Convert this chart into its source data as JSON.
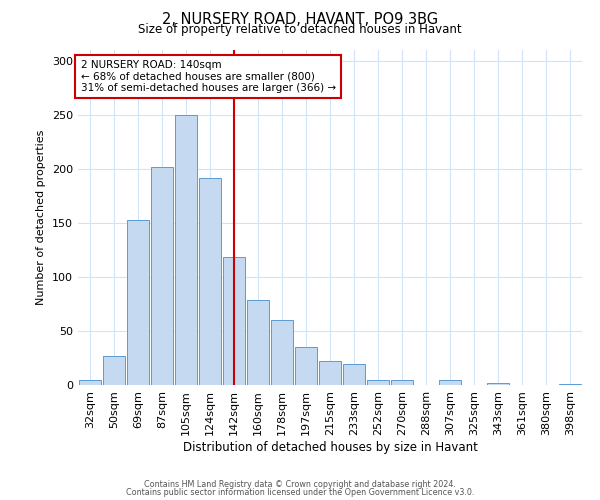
{
  "title": "2, NURSERY ROAD, HAVANT, PO9 3BG",
  "subtitle": "Size of property relative to detached houses in Havant",
  "xlabel": "Distribution of detached houses by size in Havant",
  "ylabel": "Number of detached properties",
  "bin_labels": [
    "32sqm",
    "50sqm",
    "69sqm",
    "87sqm",
    "105sqm",
    "124sqm",
    "142sqm",
    "160sqm",
    "178sqm",
    "197sqm",
    "215sqm",
    "233sqm",
    "252sqm",
    "270sqm",
    "288sqm",
    "307sqm",
    "325sqm",
    "343sqm",
    "361sqm",
    "380sqm",
    "398sqm"
  ],
  "bar_values": [
    5,
    27,
    153,
    202,
    250,
    192,
    118,
    79,
    60,
    35,
    22,
    19,
    5,
    5,
    0,
    5,
    0,
    2,
    0,
    0,
    1
  ],
  "bar_color": "#c5d9f0",
  "bar_edge_color": "#5b9bd5",
  "property_line_index": 6,
  "property_line_color": "#cc0000",
  "annotation_title": "2 NURSERY ROAD: 140sqm",
  "annotation_line1": "← 68% of detached houses are smaller (800)",
  "annotation_line2": "31% of semi-detached houses are larger (366) →",
  "annotation_box_color": "#cc0000",
  "footer_line1": "Contains HM Land Registry data © Crown copyright and database right 2024.",
  "footer_line2": "Contains public sector information licensed under the Open Government Licence v3.0.",
  "ylim": [
    0,
    310
  ],
  "background_color": "#ffffff",
  "grid_color": "#d0e4f5"
}
